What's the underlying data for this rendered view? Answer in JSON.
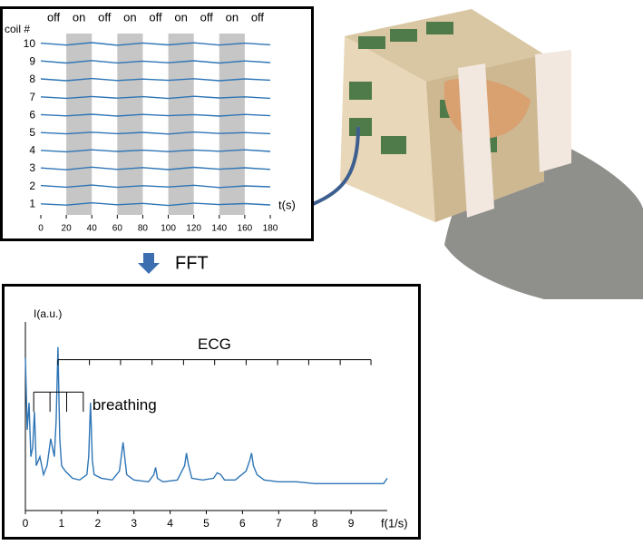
{
  "chart_data": [
    {
      "type": "line",
      "y_label": "coil #",
      "x_label": "t(s)",
      "x": [
        0,
        20,
        40,
        60,
        80,
        100,
        120,
        140,
        160,
        180
      ],
      "xlim": [
        0,
        180
      ],
      "xticks": [
        0,
        20,
        40,
        60,
        80,
        100,
        120,
        140,
        160,
        180
      ],
      "ylim": [
        0.4,
        10.6
      ],
      "yticks": [
        1,
        2,
        3,
        4,
        5,
        6,
        7,
        8,
        9,
        10
      ],
      "color": "#2e75b6",
      "periods": [
        {
          "label": "off",
          "start": 0,
          "end": 20,
          "shaded": false
        },
        {
          "label": "on",
          "start": 20,
          "end": 40,
          "shaded": true
        },
        {
          "label": "off",
          "start": 40,
          "end": 60,
          "shaded": false
        },
        {
          "label": "on",
          "start": 60,
          "end": 80,
          "shaded": true
        },
        {
          "label": "off",
          "start": 80,
          "end": 100,
          "shaded": false
        },
        {
          "label": "on",
          "start": 100,
          "end": 120,
          "shaded": true
        },
        {
          "label": "off",
          "start": 120,
          "end": 140,
          "shaded": false
        },
        {
          "label": "on",
          "start": 140,
          "end": 160,
          "shaded": true
        },
        {
          "label": "off",
          "start": 160,
          "end": 180,
          "shaded": false
        }
      ],
      "series": [
        {
          "values": [
            1.02,
            0.95,
            1.08,
            0.97,
            1.05,
            0.93,
            1.06,
            0.98,
            1.04,
            0.96
          ]
        },
        {
          "values": [
            2.05,
            1.96,
            2.08,
            1.95,
            2.04,
            1.97,
            2.07,
            1.94,
            2.03,
            1.98
          ]
        },
        {
          "values": [
            3.04,
            2.94,
            3.09,
            2.96,
            3.06,
            2.95,
            3.08,
            2.97,
            3.05,
            2.96
          ]
        },
        {
          "values": [
            4.03,
            3.95,
            4.06,
            3.97,
            4.04,
            3.96,
            4.05,
            3.98,
            4.06,
            3.97
          ]
        },
        {
          "values": [
            5.03,
            4.96,
            5.05,
            4.97,
            5.04,
            4.95,
            5.06,
            4.98,
            5.03,
            4.97
          ]
        },
        {
          "values": [
            6.04,
            5.97,
            6.06,
            5.96,
            6.05,
            5.98,
            6.04,
            5.96,
            6.05,
            5.98
          ]
        },
        {
          "values": [
            7.04,
            6.96,
            7.06,
            6.97,
            7.05,
            6.95,
            7.07,
            6.98,
            7.04,
            6.96
          ]
        },
        {
          "values": [
            8.05,
            7.95,
            8.07,
            7.96,
            8.04,
            7.97,
            8.06,
            7.95,
            8.05,
            7.98
          ]
        },
        {
          "values": [
            9.06,
            8.94,
            9.08,
            8.95,
            9.05,
            8.96,
            9.07,
            8.94,
            9.06,
            8.97
          ]
        },
        {
          "values": [
            10.06,
            9.95,
            10.09,
            9.94,
            10.07,
            9.96,
            10.08,
            9.95,
            10.06,
            9.97
          ]
        }
      ]
    },
    {
      "type": "line",
      "y_label": "I(a.u.)",
      "x_label": "f(1/s)",
      "x": [
        0,
        0.05,
        0.1,
        0.15,
        0.2,
        0.25,
        0.3,
        0.4,
        0.5,
        0.6,
        0.7,
        0.8,
        0.85,
        0.9,
        0.95,
        1.0,
        1.1,
        1.3,
        1.5,
        1.7,
        1.75,
        1.8,
        1.85,
        1.9,
        2.1,
        2.4,
        2.6,
        2.7,
        2.8,
        3.0,
        3.4,
        3.55,
        3.6,
        3.65,
        3.8,
        4.2,
        4.4,
        4.45,
        4.5,
        4.6,
        4.9,
        5.2,
        5.3,
        5.4,
        5.5,
        5.8,
        6.1,
        6.2,
        6.25,
        6.3,
        6.4,
        6.6,
        7.0,
        7.5,
        8.0,
        8.5,
        9.0,
        9.5,
        9.9,
        10
      ],
      "xlim": [
        0,
        10
      ],
      "xticks": [
        0,
        1,
        2,
        3,
        4,
        5,
        6,
        7,
        8,
        9
      ],
      "ylim": [
        0,
        100
      ],
      "color": "#2e75b6",
      "series": [
        {
          "values": [
            85,
            45,
            60,
            30,
            35,
            55,
            25,
            30,
            20,
            25,
            40,
            30,
            50,
            91,
            40,
            25,
            22,
            18,
            17,
            20,
            30,
            60,
            28,
            20,
            18,
            17,
            22,
            38,
            20,
            17,
            16,
            20,
            24,
            18,
            16,
            17,
            25,
            32,
            26,
            18,
            17,
            18,
            21,
            20,
            17,
            17,
            22,
            28,
            32,
            25,
            20,
            17,
            16,
            16,
            15,
            15,
            15,
            15,
            15,
            18
          ]
        }
      ],
      "annotations": [
        {
          "text": "ECG",
          "level": 84,
          "drop": 3,
          "ticks": [
            0.9,
            1.77,
            2.63,
            3.5,
            4.37,
            5.23,
            6.1,
            6.97,
            7.83,
            8.7,
            9.55
          ]
        },
        {
          "text": "breathing",
          "level": 66,
          "drop": 11,
          "ticks": [
            0.23,
            0.68,
            1.14,
            1.6
          ]
        }
      ]
    }
  ],
  "caption": "FFT"
}
